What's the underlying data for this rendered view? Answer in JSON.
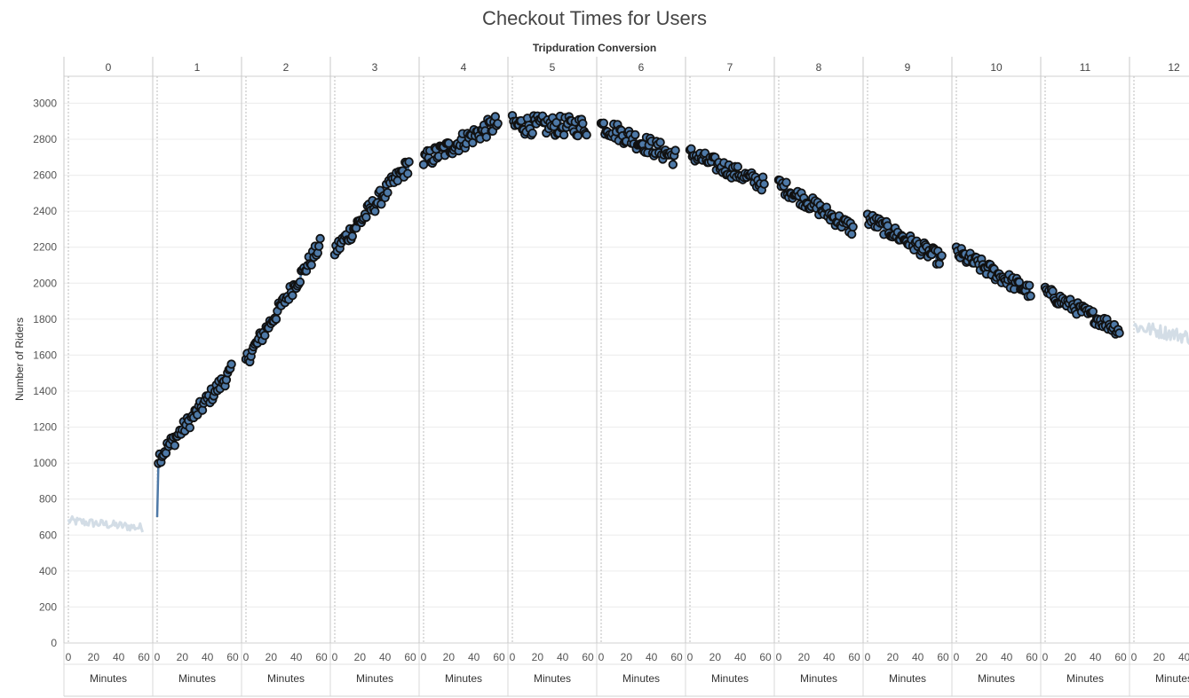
{
  "chart_data": {
    "type": "line",
    "title": "Checkout Times for Users",
    "column_header": "Tripduration Conversion",
    "ylabel": "Number of Riders",
    "xlabel": "Minutes",
    "panes": [
      "0",
      "1",
      "2",
      "3",
      "4",
      "5",
      "6",
      "7",
      "8",
      "9",
      "10",
      "11",
      "12"
    ],
    "x_ticks": [
      0,
      20,
      40,
      60
    ],
    "xlim": [
      0,
      60
    ],
    "y_ticks": [
      0,
      200,
      400,
      600,
      800,
      1000,
      1200,
      1400,
      1600,
      1800,
      2000,
      2200,
      2400,
      2600,
      2800,
      3000
    ],
    "ylim": [
      0,
      3150
    ],
    "colors": {
      "highlight": "#4e79a7",
      "faded": "#d3dde6",
      "marker_edge": "#111111",
      "grid": "#ececec"
    },
    "series": [
      {
        "pane": "0",
        "style": "faded",
        "y_start": 680,
        "y_end": 640,
        "noise": 25
      },
      {
        "pane": "1",
        "style": "highlight",
        "y_start": 1020,
        "y_end": 1510,
        "noise": 40,
        "first_value": 700
      },
      {
        "pane": "2",
        "style": "highlight",
        "y_start": 1570,
        "y_end": 2210,
        "noise": 40
      },
      {
        "pane": "3",
        "style": "highlight",
        "y_start": 2180,
        "y_end": 2660,
        "noise": 45
      },
      {
        "pane": "4",
        "style": "highlight",
        "y_start": 2680,
        "y_end": 2890,
        "noise": 50
      },
      {
        "pane": "5",
        "style": "highlight",
        "y_start": 2880,
        "y_end": 2870,
        "noise": 55
      },
      {
        "pane": "6",
        "style": "highlight",
        "y_start": 2880,
        "y_end": 2700,
        "noise": 50
      },
      {
        "pane": "7",
        "style": "highlight",
        "y_start": 2720,
        "y_end": 2550,
        "noise": 40
      },
      {
        "pane": "8",
        "style": "highlight",
        "y_start": 2550,
        "y_end": 2300,
        "noise": 40
      },
      {
        "pane": "9",
        "style": "highlight",
        "y_start": 2360,
        "y_end": 2130,
        "noise": 40
      },
      {
        "pane": "10",
        "style": "highlight",
        "y_start": 2170,
        "y_end": 1950,
        "noise": 40
      },
      {
        "pane": "11",
        "style": "highlight",
        "y_start": 1950,
        "y_end": 1740,
        "noise": 35
      },
      {
        "pane": "12",
        "style": "faded",
        "y_start": 1760,
        "y_end": 1680,
        "noise": 40
      }
    ]
  }
}
